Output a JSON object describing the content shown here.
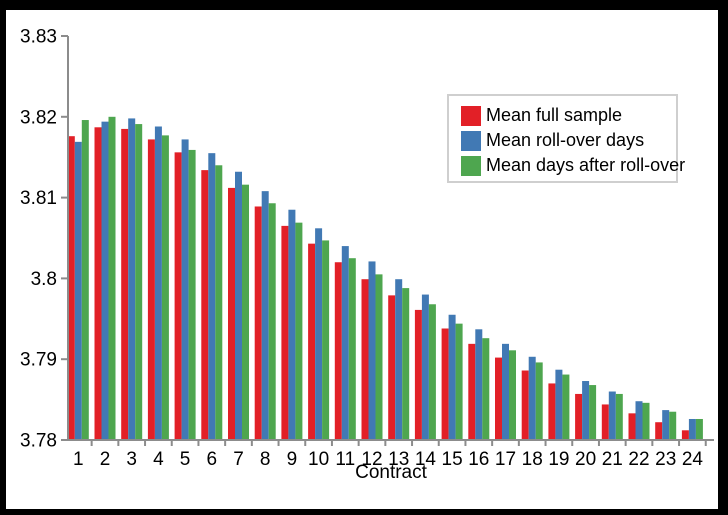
{
  "styles": {
    "frame_color": "#000000",
    "background_color": "#ffffff",
    "axis_color": "#8c8c8c",
    "text_color": "#000000",
    "legend_border_color": "#cfcfcf",
    "series_colors": [
      "#e22027",
      "#4179b4",
      "#4ea64f"
    ]
  },
  "chart_data": {
    "type": "bar",
    "title": "",
    "xlabel": "Contract",
    "ylabel": "",
    "grid": false,
    "legend_position": "upper-right",
    "ylim": [
      3.78,
      3.83
    ],
    "ytick_values": [
      3.78,
      3.79,
      3.8,
      3.81,
      3.82,
      3.83
    ],
    "ytick_labels": [
      "3.78",
      "3.79",
      "3.8",
      "3.81",
      "3.82",
      "3.83"
    ],
    "categories": [
      "1",
      "2",
      "3",
      "4",
      "5",
      "6",
      "7",
      "8",
      "9",
      "10",
      "11",
      "12",
      "13",
      "14",
      "15",
      "16",
      "17",
      "18",
      "19",
      "20",
      "21",
      "22",
      "23",
      "24"
    ],
    "series": [
      {
        "name": "Mean full sample",
        "color": "#e22027",
        "values": [
          3.8176,
          3.8187,
          3.8185,
          3.8172,
          3.8156,
          3.8134,
          3.8112,
          3.8089,
          3.8065,
          3.8043,
          3.802,
          3.7999,
          3.7979,
          3.7961,
          3.7938,
          3.7919,
          3.7902,
          3.7886,
          3.787,
          3.7857,
          3.7844,
          3.7833,
          3.7822,
          3.7812
        ]
      },
      {
        "name": "Mean roll-over days",
        "color": "#4179b4",
        "values": [
          3.8169,
          3.8194,
          3.8198,
          3.8188,
          3.8172,
          3.8155,
          3.8132,
          3.8108,
          3.8085,
          3.8062,
          3.804,
          3.8021,
          3.7999,
          3.798,
          3.7955,
          3.7937,
          3.7919,
          3.7903,
          3.7887,
          3.7873,
          3.786,
          3.7848,
          3.7837,
          3.7826
        ]
      },
      {
        "name": "Mean days after roll-over",
        "color": "#4ea64f",
        "values": [
          3.8196,
          3.82,
          3.8191,
          3.8177,
          3.8159,
          3.814,
          3.8116,
          3.8093,
          3.8069,
          3.8047,
          3.8025,
          3.8005,
          3.7988,
          3.7968,
          3.7944,
          3.7926,
          3.7911,
          3.7896,
          3.7881,
          3.7868,
          3.7857,
          3.7846,
          3.7835,
          3.7826
        ]
      }
    ]
  }
}
